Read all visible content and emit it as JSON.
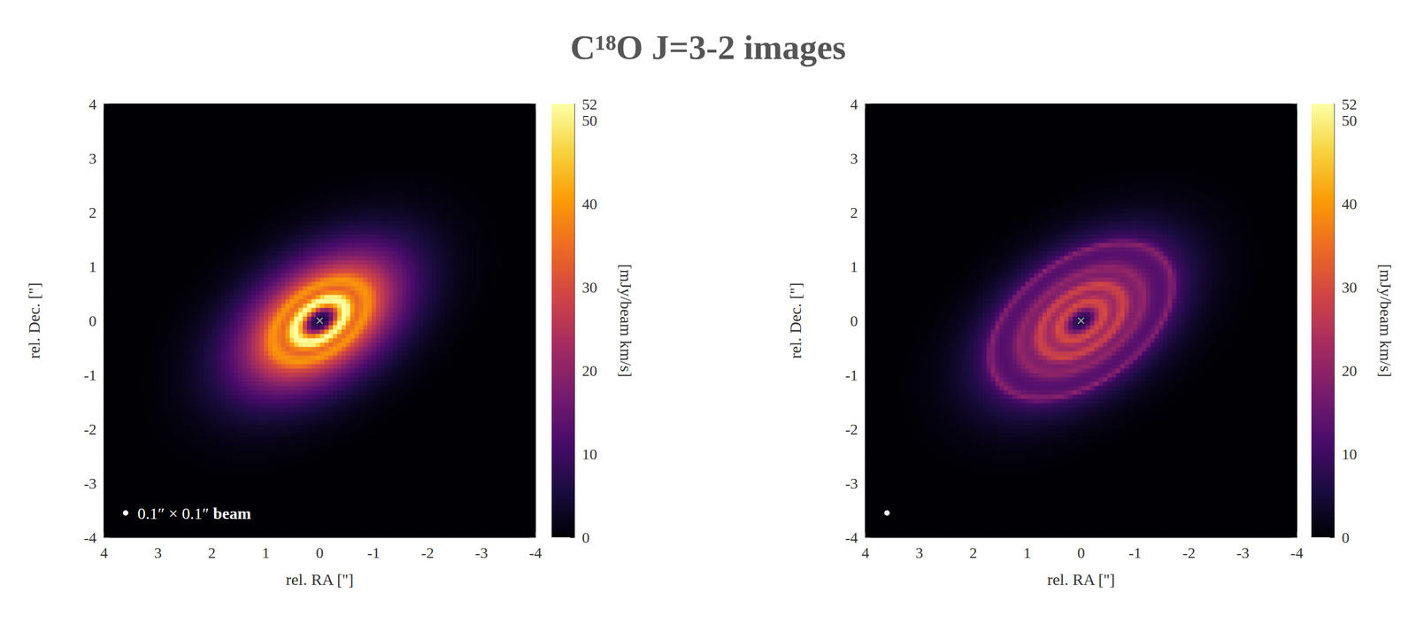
{
  "chart_data": {
    "type": "heatmap",
    "title": "C¹⁸O J=3-2 images",
    "x_label": "rel. RA ['']",
    "y_label": "rel. Dec. ['']",
    "xlim": [
      4,
      -4
    ],
    "ylim": [
      -4,
      4
    ],
    "xticks": [
      4,
      3,
      2,
      1,
      0,
      -1,
      -2,
      -3,
      -4
    ],
    "yticks": [
      -4,
      -3,
      -2,
      -1,
      0,
      1,
      2,
      3,
      4
    ],
    "colorbar_label": "[mJy/beam km/s]",
    "colorbar_lim": [
      0,
      52
    ],
    "colorbar_ticks": [
      0,
      10,
      20,
      30,
      40,
      50
    ],
    "beam": [
      0.1,
      0.1
    ],
    "star_position": [
      0,
      0
    ],
    "panels": [
      {
        "beam_label": "0.1″ × 0.1″ beam",
        "axis_ratio": 0.6,
        "position_angle": 125,
        "radius": [
          0,
          0.1,
          0.2,
          0.3,
          0.4,
          0.5,
          0.6,
          0.7,
          0.8,
          0.9,
          1.0,
          1.1,
          1.2,
          1.3,
          1.4,
          1.5,
          1.6,
          1.7,
          1.8,
          1.9,
          2.0,
          2.1,
          2.2,
          2.3,
          2.4,
          2.5,
          2.6,
          2.7,
          2.8,
          2.9,
          3.0,
          3.1,
          3.2,
          3.3,
          3.4,
          3.5,
          3.6,
          3.7,
          3.8,
          3.9,
          4.0
        ],
        "intensity": [
          4,
          6,
          12,
          25,
          42,
          53,
          50,
          38,
          34,
          38,
          40,
          36,
          30,
          27,
          24,
          21,
          18,
          16,
          14,
          12,
          10.5,
          9,
          7.5,
          6.5,
          5.5,
          4.5,
          3.8,
          3.2,
          2.6,
          2.1,
          1.7,
          1.4,
          1.1,
          0.9,
          0.7,
          0.5,
          0.4,
          0.3,
          0.2,
          0.1,
          0.1
        ]
      },
      {
        "axis_ratio": 0.6,
        "position_angle": 125,
        "radius": [
          0,
          0.1,
          0.2,
          0.3,
          0.4,
          0.5,
          0.6,
          0.7,
          0.8,
          0.9,
          1.0,
          1.1,
          1.2,
          1.3,
          1.4,
          1.5,
          1.6,
          1.7,
          1.8,
          1.9,
          2.0,
          2.1,
          2.2,
          2.3,
          2.4,
          2.5,
          2.6,
          2.7,
          2.8,
          2.9,
          3.0,
          3.1,
          3.2,
          3.3,
          3.4,
          3.5,
          3.6,
          3.7,
          3.8,
          3.9,
          4.0
        ],
        "intensity": [
          5,
          7,
          12,
          20,
          28,
          30,
          24,
          22,
          27,
          29,
          22,
          18,
          19,
          21,
          17,
          14,
          13,
          13,
          15,
          20,
          12,
          9,
          8,
          6.5,
          5.5,
          4.5,
          3.8,
          3.2,
          2.6,
          2.1,
          1.7,
          1.4,
          1.1,
          0.9,
          0.7,
          0.5,
          0.4,
          0.3,
          0.2,
          0.1,
          0.1
        ]
      }
    ]
  }
}
